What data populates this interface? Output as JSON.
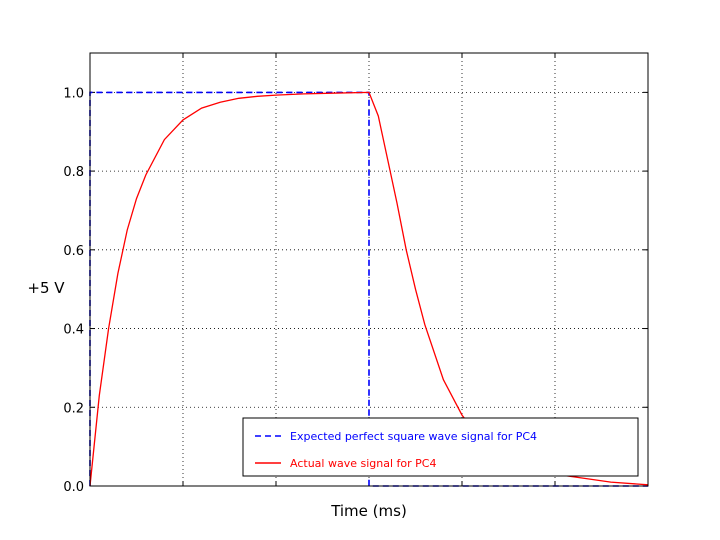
{
  "chart_data": {
    "type": "line",
    "xlabel": "Time (ms)",
    "ylabel": "+5 V",
    "xlim": [
      0,
      6
    ],
    "ylim": [
      0,
      1.1
    ],
    "xticks": [
      0,
      1,
      2,
      3,
      4,
      5,
      6
    ],
    "yticks": [
      "0.0",
      "0.2",
      "0.4",
      "0.6",
      "0.8",
      "1.0"
    ],
    "grid": true,
    "legend_position": "bottom-right",
    "series": [
      {
        "name": "Expected perfect square wave signal for PC4",
        "color": "#0000ff",
        "style": "dashed",
        "x": [
          0,
          0,
          3,
          3,
          6
        ],
        "y": [
          0,
          1,
          1,
          0,
          0
        ]
      },
      {
        "name": "Actual wave signal for PC4",
        "color": "#ff0000",
        "style": "solid",
        "x": [
          0,
          0.1,
          0.2,
          0.3,
          0.4,
          0.5,
          0.6,
          0.8,
          1.0,
          1.2,
          1.4,
          1.6,
          1.8,
          2.0,
          2.3,
          2.6,
          3.0,
          3.1,
          3.2,
          3.3,
          3.4,
          3.5,
          3.6,
          3.8,
          4.0,
          4.2,
          4.4,
          4.6,
          4.8,
          5.0,
          5.3,
          5.6,
          6.0
        ],
        "y": [
          0,
          0.23,
          0.4,
          0.54,
          0.65,
          0.73,
          0.79,
          0.88,
          0.93,
          0.96,
          0.975,
          0.985,
          0.99,
          0.993,
          0.996,
          0.998,
          1.0,
          0.94,
          0.83,
          0.72,
          0.6,
          0.5,
          0.41,
          0.27,
          0.18,
          0.12,
          0.08,
          0.055,
          0.04,
          0.03,
          0.02,
          0.01,
          0.003
        ]
      }
    ]
  }
}
